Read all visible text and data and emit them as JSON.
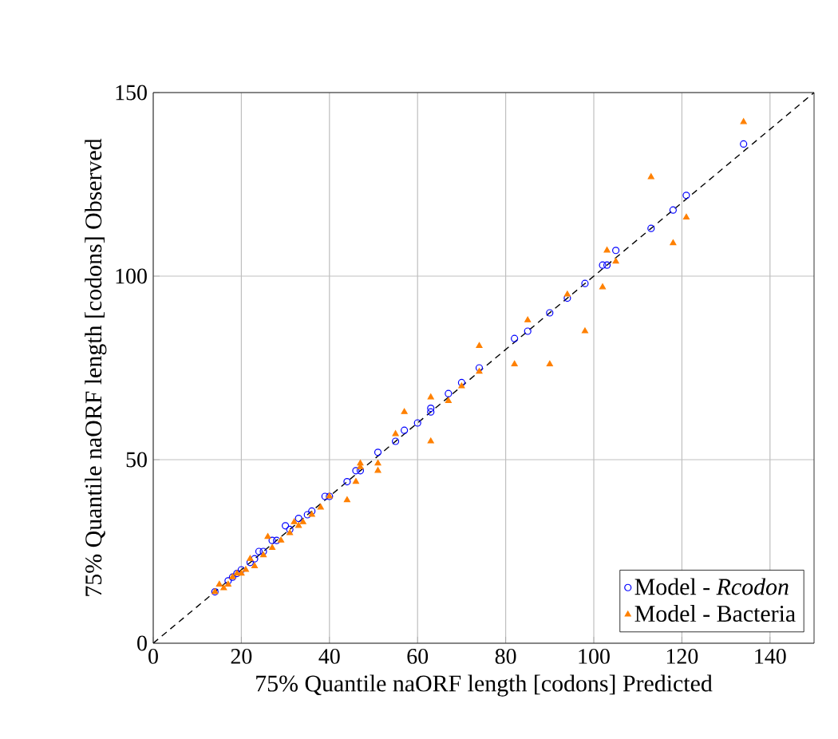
{
  "chart_data": {
    "type": "scatter",
    "xlabel": "75% Quantile naORF length [codons] Predicted",
    "ylabel": "75% Quantile naORF length [codons] Observed",
    "xlim": [
      0,
      150
    ],
    "ylim": [
      0,
      150
    ],
    "xticks": [
      0,
      20,
      40,
      60,
      80,
      100,
      120,
      140
    ],
    "yticks": [
      0,
      50,
      100,
      150
    ],
    "grid": true,
    "legend": "bottom right",
    "series": [
      {
        "name": "Model - *Rcodon*",
        "color": "#0000ff",
        "marker": "circle",
        "x": [
          14,
          15,
          16,
          17,
          18,
          19,
          20,
          22,
          23,
          24,
          25,
          27,
          28,
          30,
          31,
          33,
          35,
          36,
          39,
          40,
          44,
          46,
          47,
          51,
          55,
          57,
          60,
          63,
          63,
          67,
          70,
          74,
          82,
          85,
          90,
          94,
          98,
          102,
          103,
          105,
          113,
          118,
          121,
          134
        ],
        "values": [
          14,
          null,
          null,
          17,
          18,
          19,
          20,
          22,
          23,
          25,
          25,
          28,
          28,
          32,
          31,
          34,
          35,
          36,
          40,
          40,
          44,
          47,
          47,
          52,
          55,
          58,
          60,
          63,
          64,
          68,
          71,
          75,
          83,
          85,
          90,
          94,
          98,
          103,
          103,
          107,
          113,
          118,
          122,
          136
        ]
      },
      {
        "name": "Model - Bacteria",
        "color": "#ff8000",
        "marker": "triangle",
        "x": [
          14,
          15,
          16,
          17,
          18,
          19,
          20,
          21,
          22,
          23,
          25,
          26,
          27,
          29,
          31,
          32,
          33,
          34,
          36,
          38,
          40,
          44,
          46,
          47,
          47,
          51,
          51,
          55,
          57,
          63,
          63,
          67,
          70,
          74,
          74,
          82,
          85,
          90,
          94,
          98,
          102,
          103,
          105,
          113,
          118,
          121,
          134
        ],
        "values": [
          14,
          16,
          15,
          16,
          18,
          19,
          19,
          20,
          23,
          21,
          24,
          29,
          26,
          28,
          30,
          33,
          32,
          33,
          35,
          37,
          40,
          39,
          44,
          48,
          49,
          47,
          49,
          57,
          63,
          67,
          55,
          66,
          70,
          74,
          81,
          76,
          88,
          76,
          95,
          85,
          97,
          107,
          104,
          127,
          109,
          116,
          142
        ]
      },
      {
        "type": "line",
        "color": "#000000",
        "line_style": "dashed",
        "marker": "none",
        "x": [
          0,
          150
        ],
        "values": [
          0,
          150
        ]
      }
    ]
  }
}
